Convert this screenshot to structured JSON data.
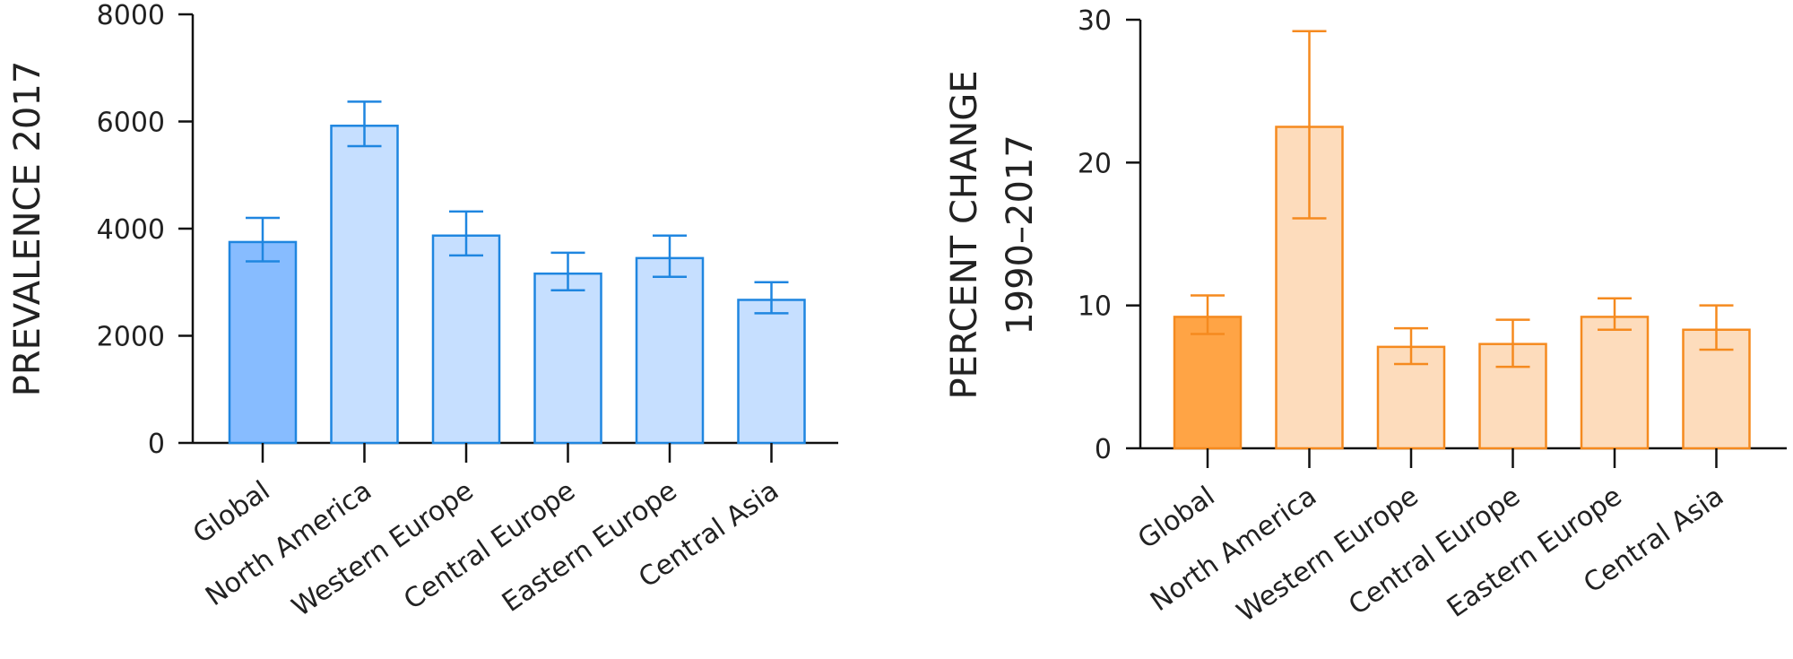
{
  "chart_data": [
    {
      "type": "bar",
      "categories": [
        "Global",
        "North America",
        "Western Europe",
        "Central Europe",
        "Eastern Europe",
        "Central Asia"
      ],
      "values": [
        3750,
        5920,
        3870,
        3160,
        3450,
        2670
      ],
      "error_low": [
        3390,
        5540,
        3500,
        2850,
        3100,
        2420
      ],
      "error_high": [
        4200,
        6370,
        4320,
        3550,
        3870,
        3000
      ],
      "ylabel": "PREVALENCE 2017",
      "ylim": [
        0,
        8000
      ],
      "yticks": [
        0,
        2000,
        4000,
        6000,
        8000
      ],
      "highlight_color": "#87bcff",
      "bar_color": "#c6dfff",
      "stroke_color": "#1f86e0",
      "grid": false
    },
    {
      "type": "bar",
      "categories": [
        "Global",
        "North America",
        "Western Europe",
        "Central Europe",
        "Eastern Europe",
        "Central Asia"
      ],
      "values": [
        9.2,
        22.5,
        7.1,
        7.3,
        9.2,
        8.3
      ],
      "error_low": [
        8.0,
        16.1,
        5.9,
        5.7,
        8.3,
        6.9
      ],
      "error_high": [
        10.7,
        29.2,
        8.4,
        9.0,
        10.5,
        10.0
      ],
      "ylabel": [
        "PERCENT CHANGE",
        "1990–2017"
      ],
      "ylim": [
        0,
        30
      ],
      "yticks": [
        0,
        10,
        20,
        30
      ],
      "highlight_color": "#ffa445",
      "bar_color": "#fddcbc",
      "stroke_color": "#f58a1f",
      "grid": false
    }
  ]
}
